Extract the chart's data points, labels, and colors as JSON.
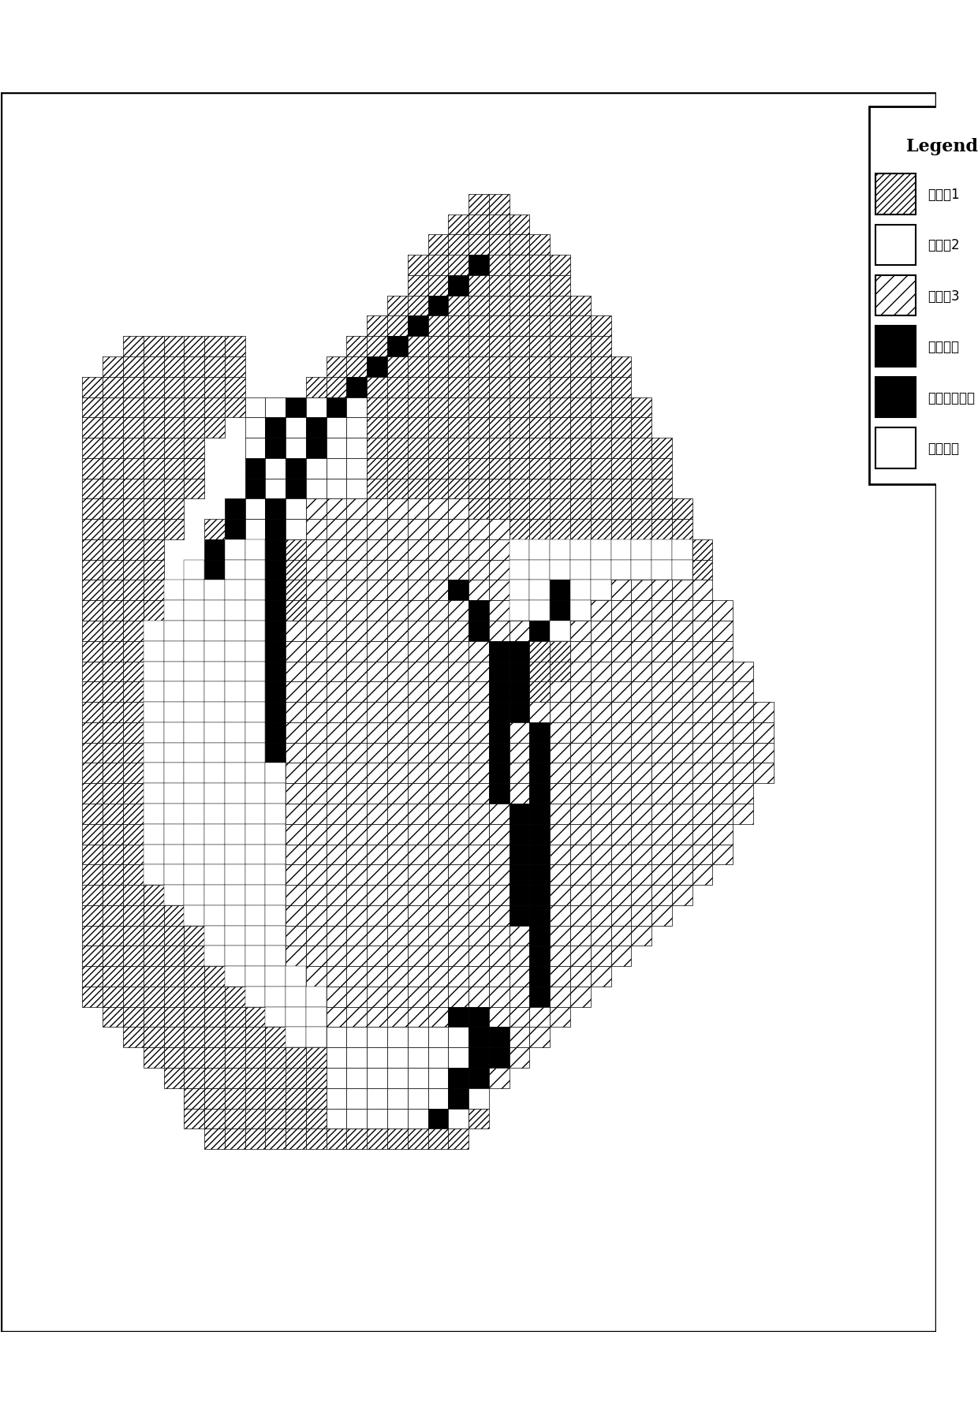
{
  "legend_title": "Legend",
  "legend_labels": [
    "等高带1",
    "等高带2",
    "等高带3",
    "河道栅格",
    "备选沟道栅格",
    "坡面栅格"
  ],
  "figsize": [
    12.4,
    18.08
  ],
  "dpi": 100,
  "hatch1": "////",
  "hatch3": "////",
  "border_lw": 2.5
}
